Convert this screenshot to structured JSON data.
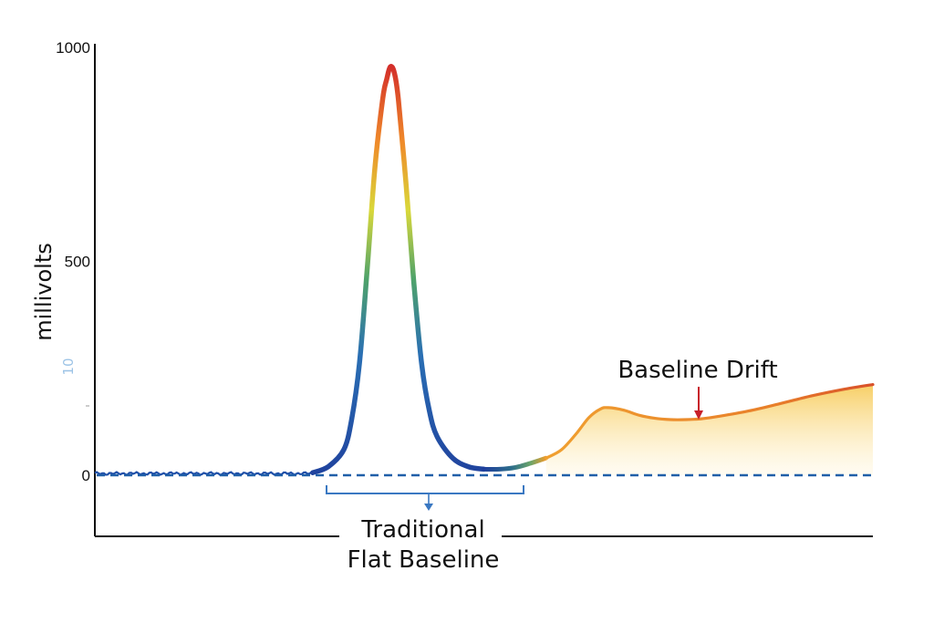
{
  "chart_data": {
    "type": "line",
    "title": "",
    "xlabel": "",
    "ylabel": "millivolts",
    "ylim": [
      -135,
      1000
    ],
    "yticks": [
      0,
      500,
      1000
    ],
    "stray_axis_mark": "10",
    "grid": false,
    "series": [
      {
        "values": [
          [
            0,
            4
          ],
          [
            5,
            5
          ],
          [
            10,
            3
          ],
          [
            15,
            5
          ],
          [
            20,
            4
          ],
          [
            25,
            5
          ],
          [
            28,
            6
          ],
          [
            30,
            20
          ],
          [
            32,
            60
          ],
          [
            33,
            130
          ],
          [
            34,
            260
          ],
          [
            35,
            480
          ],
          [
            36,
            720
          ],
          [
            37,
            880
          ],
          [
            37.5,
            925
          ],
          [
            38,
            955
          ],
          [
            38.5,
            940
          ],
          [
            39,
            880
          ],
          [
            40,
            680
          ],
          [
            41,
            450
          ],
          [
            42,
            260
          ],
          [
            43,
            150
          ],
          [
            44,
            90
          ],
          [
            46,
            40
          ],
          [
            48,
            20
          ],
          [
            50,
            14
          ],
          [
            52,
            14
          ],
          [
            54,
            18
          ],
          [
            56,
            28
          ],
          [
            58,
            40
          ]
        ],
        "color_scale": [
          "#1f4fa8",
          "#2a86b0",
          "#59ae4a",
          "#e5d634",
          "#ee8a2a",
          "#d0232a"
        ]
      },
      {
        "values": [
          [
            58,
            40
          ],
          [
            60,
            60
          ],
          [
            62,
            100
          ],
          [
            63.5,
            135
          ],
          [
            65,
            155
          ],
          [
            66,
            158
          ],
          [
            68,
            152
          ],
          [
            70,
            140
          ],
          [
            72,
            133
          ],
          [
            74,
            130
          ],
          [
            76,
            130
          ],
          [
            78,
            132
          ],
          [
            80,
            137
          ],
          [
            84,
            150
          ],
          [
            88,
            167
          ],
          [
            92,
            185
          ],
          [
            96,
            200
          ],
          [
            100,
            212
          ]
        ],
        "line_color": "#ee8a2a",
        "fill": "gradient-yellow"
      }
    ],
    "reference_line": {
      "y": 0,
      "style": "dashed",
      "color": "#1f5fa8"
    },
    "annotations": {
      "drift_label": "Baseline Drift",
      "flat_label_line1": "Traditional",
      "flat_label_line2": "Flat Baseline"
    },
    "colors": {
      "axis": "#111111",
      "dashed_baseline": "#1f5fa8",
      "bracket": "#3a78c2",
      "drift_arrow": "#c8202a"
    }
  }
}
